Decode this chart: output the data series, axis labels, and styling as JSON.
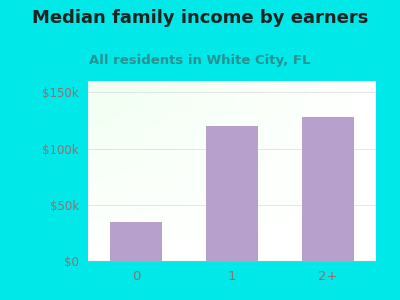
{
  "title": "Median family income by earners",
  "subtitle": "All residents in White City, FL",
  "categories": [
    "0",
    "1",
    "2+"
  ],
  "values": [
    35000,
    120000,
    128000
  ],
  "bar_color": "#b8a0cc",
  "background_color": "#00e8e8",
  "title_color": "#222222",
  "subtitle_color": "#2a9090",
  "axis_label_color": "#907070",
  "yticks": [
    0,
    50000,
    100000,
    150000
  ],
  "ytick_labels": [
    "$0",
    "$50k",
    "$100k",
    "$150k"
  ],
  "ylim": [
    0,
    160000
  ],
  "title_fontsize": 13,
  "subtitle_fontsize": 9.5,
  "bar_width": 0.55
}
